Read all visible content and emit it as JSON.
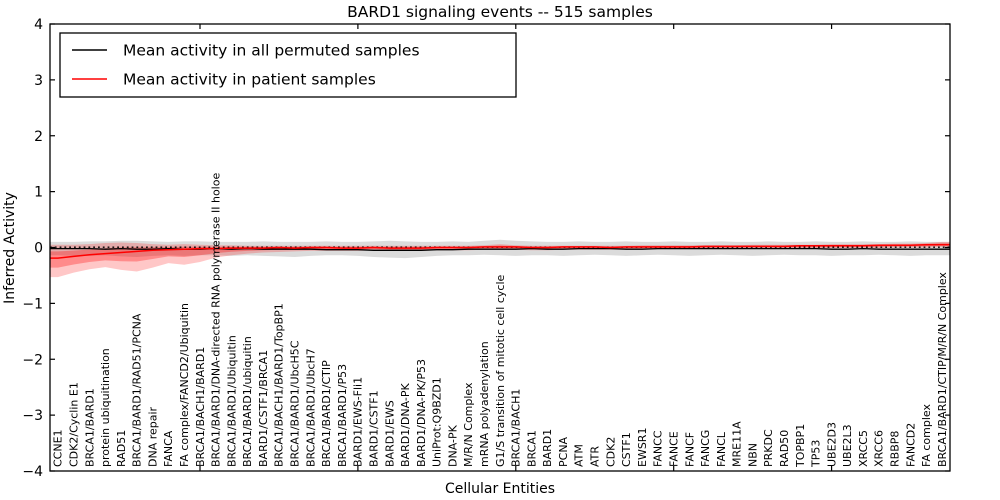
{
  "title": "BARD1 signaling events -- 515 samples",
  "axes": {
    "ylabel": "Inferred Activity",
    "xlabel": "Cellular Entities",
    "yticks": [
      "4",
      "3",
      "2",
      "1",
      "0",
      "−1",
      "−2",
      "−3",
      "−4"
    ],
    "ytick_values": [
      4,
      3,
      2,
      1,
      0,
      -1,
      -2,
      -3,
      -4
    ],
    "ylim": [
      -4,
      4
    ]
  },
  "legend": {
    "entries": [
      {
        "label": "Mean activity in all permuted samples",
        "color": "#000000"
      },
      {
        "label": "Mean activity in patient samples",
        "color": "#ff0000"
      }
    ]
  },
  "colors": {
    "patient_line": "#ff0000",
    "permuted_line": "#000000",
    "zero_line": "#000000",
    "patient_band_fill": "#ff0000",
    "permuted_band_fill": "#999999",
    "frame": "#000000"
  },
  "chart_data": {
    "type": "line",
    "title": "BARD1 signaling events -- 515 samples",
    "xlabel": "Cellular Entities",
    "ylabel": "Inferred Activity",
    "ylim": [
      -4,
      4
    ],
    "grid": false,
    "legend_position": "upper left",
    "x_major_tick_every": 10,
    "categories": [
      "CCNE1",
      "CDK2/Cyclin E1",
      "BRCA1/BARD1",
      "protein ubiquitination",
      "RAD51",
      "BRCA1/BARD1/RAD51/PCNA",
      "DNA repair",
      "FANCA",
      "FA complex/FANCD2/Ubiquitin",
      "BRCA1/BACH1/BARD1",
      "BRCA1/BARD1/DNA-directed RNA polymerase II holoe",
      "BRCA1/BARD1/Ubiquitin",
      "BRCA1/BARD1/ubiquitin",
      "BARD1/CSTF1/BRCA1",
      "BRCA1/BACH1/BARD1/TopBP1",
      "BRCA1/BARD1/UbcH5C",
      "BRCA1/BARD1/UbcH7",
      "BRCA1/BARD1/CTIP",
      "BRCA1/BARD1/P53",
      "BARD1/EWS-Fli1",
      "BARD1/CSTF1",
      "BARD1/EWS",
      "BARD1/DNA-PK",
      "BARD1/DNA-PK/P53",
      "UniProt:Q9BZD1",
      "DNA-PK",
      "M/R/N Complex",
      "mRNA polyadenylation",
      "G1/S transition of mitotic cell cycle",
      "BRCA1/BACH1",
      "BRCA1",
      "BARD1",
      "PCNA",
      "ATM",
      "ATR",
      "CDK2",
      "CSTF1",
      "EWSR1",
      "FANCC",
      "FANCE",
      "FANCF",
      "FANCG",
      "FANCL",
      "MRE11A",
      "NBN",
      "PRKDC",
      "RAD50",
      "TOPBP1",
      "TP53",
      "UBE2D3",
      "UBE2L3",
      "XRCC5",
      "XRCC6",
      "RBBP8",
      "FANCD2",
      "FA complex",
      "BRCA1/BARD1/CTIP/M/R/N Complex"
    ],
    "series": [
      {
        "name": "Mean activity in all permuted samples",
        "color": "#000000",
        "style": "solid",
        "values": [
          -0.02,
          -0.02,
          -0.02,
          -0.03,
          -0.02,
          -0.03,
          -0.03,
          -0.02,
          -0.03,
          -0.03,
          -0.02,
          -0.03,
          -0.02,
          -0.03,
          -0.03,
          -0.03,
          -0.03,
          -0.04,
          -0.04,
          -0.04,
          -0.05,
          -0.05,
          -0.05,
          -0.05,
          -0.04,
          -0.04,
          -0.03,
          -0.03,
          -0.03,
          -0.03,
          -0.02,
          -0.03,
          -0.03,
          -0.02,
          -0.02,
          -0.02,
          -0.03,
          -0.03,
          -0.02,
          -0.02,
          -0.02,
          -0.02,
          -0.02,
          -0.02,
          -0.02,
          -0.02,
          -0.02,
          -0.02,
          -0.02,
          -0.03,
          -0.03,
          -0.02,
          -0.03,
          -0.03,
          -0.03,
          -0.03,
          -0.03
        ]
      },
      {
        "name": "Mean activity in patient samples",
        "color": "#ff0000",
        "style": "solid",
        "values": [
          -0.19,
          -0.16,
          -0.13,
          -0.11,
          -0.09,
          -0.07,
          -0.05,
          -0.04,
          -0.03,
          -0.02,
          -0.02,
          -0.01,
          -0.01,
          -0.01,
          0.0,
          -0.01,
          0.0,
          0.0,
          -0.01,
          -0.01,
          0.0,
          -0.01,
          -0.01,
          -0.01,
          0.0,
          0.0,
          0.0,
          0.01,
          0.01,
          0.01,
          0.0,
          0.0,
          0.01,
          0.01,
          0.01,
          0.0,
          0.01,
          0.01,
          0.01,
          0.01,
          0.01,
          0.02,
          0.02,
          0.02,
          0.02,
          0.02,
          0.02,
          0.03,
          0.03,
          0.03,
          0.03,
          0.03,
          0.04,
          0.04,
          0.04,
          0.05,
          0.05
        ]
      },
      {
        "name": "zero reference",
        "color": "#000000",
        "style": "dotted",
        "constant": 0.0
      }
    ],
    "bands": [
      {
        "name": "permuted range",
        "fill": "#999999",
        "opacity": 0.35,
        "upper": [
          0.1,
          0.1,
          0.11,
          0.11,
          0.12,
          0.12,
          0.11,
          0.1,
          0.11,
          0.11,
          0.1,
          0.1,
          0.1,
          0.11,
          0.1,
          0.1,
          0.1,
          0.11,
          0.1,
          0.1,
          0.11,
          0.12,
          0.11,
          0.1,
          0.1,
          0.11,
          0.1,
          0.12,
          0.14,
          0.12,
          0.11,
          0.1,
          0.1,
          0.11,
          0.1,
          0.1,
          0.11,
          0.1,
          0.1,
          0.11,
          0.1,
          0.1,
          0.11,
          0.1,
          0.1,
          0.11,
          0.1,
          0.1,
          0.11,
          0.1,
          0.1,
          0.11,
          0.1,
          0.1,
          0.11,
          0.1,
          0.1
        ],
        "lower": [
          -0.14,
          -0.15,
          -0.15,
          -0.14,
          -0.16,
          -0.17,
          -0.15,
          -0.14,
          -0.15,
          -0.14,
          -0.14,
          -0.15,
          -0.14,
          -0.15,
          -0.16,
          -0.17,
          -0.15,
          -0.14,
          -0.14,
          -0.15,
          -0.17,
          -0.18,
          -0.19,
          -0.17,
          -0.15,
          -0.14,
          -0.14,
          -0.13,
          -0.14,
          -0.15,
          -0.14,
          -0.14,
          -0.15,
          -0.14,
          -0.13,
          -0.14,
          -0.15,
          -0.14,
          -0.13,
          -0.14,
          -0.15,
          -0.14,
          -0.13,
          -0.14,
          -0.15,
          -0.14,
          -0.13,
          -0.14,
          -0.14,
          -0.15,
          -0.14,
          -0.14,
          -0.13,
          -0.14,
          -0.15,
          -0.14,
          -0.14
        ]
      },
      {
        "name": "patient range",
        "fill": "#ff0000",
        "opacity": 0.22,
        "upper": [
          0.05,
          0.05,
          0.06,
          0.08,
          0.09,
          0.08,
          0.06,
          0.05,
          0.06,
          0.05,
          0.04,
          0.04,
          0.03,
          0.03,
          0.03,
          0.03,
          0.03,
          0.03,
          0.03,
          0.03,
          0.03,
          0.03,
          0.03,
          0.03,
          0.03,
          0.03,
          0.03,
          0.04,
          0.06,
          0.04,
          0.03,
          0.03,
          0.03,
          0.03,
          0.03,
          0.03,
          0.03,
          0.04,
          0.04,
          0.04,
          0.04,
          0.04,
          0.04,
          0.04,
          0.05,
          0.05,
          0.05,
          0.05,
          0.05,
          0.06,
          0.06,
          0.06,
          0.06,
          0.07,
          0.07,
          0.08,
          0.1
        ],
        "lower": [
          -0.53,
          -0.45,
          -0.39,
          -0.35,
          -0.4,
          -0.43,
          -0.36,
          -0.28,
          -0.31,
          -0.26,
          -0.18,
          -0.14,
          -0.11,
          -0.09,
          -0.08,
          -0.07,
          -0.06,
          -0.06,
          -0.06,
          -0.06,
          -0.05,
          -0.06,
          -0.06,
          -0.06,
          -0.05,
          -0.05,
          -0.05,
          -0.04,
          -0.04,
          -0.04,
          -0.05,
          -0.05,
          -0.04,
          -0.04,
          -0.04,
          -0.04,
          -0.04,
          -0.03,
          -0.03,
          -0.03,
          -0.03,
          -0.03,
          -0.03,
          -0.03,
          -0.02,
          -0.02,
          -0.02,
          -0.02,
          -0.02,
          -0.01,
          -0.01,
          -0.01,
          -0.01,
          0.0,
          0.0,
          0.0,
          0.01
        ]
      }
    ]
  }
}
